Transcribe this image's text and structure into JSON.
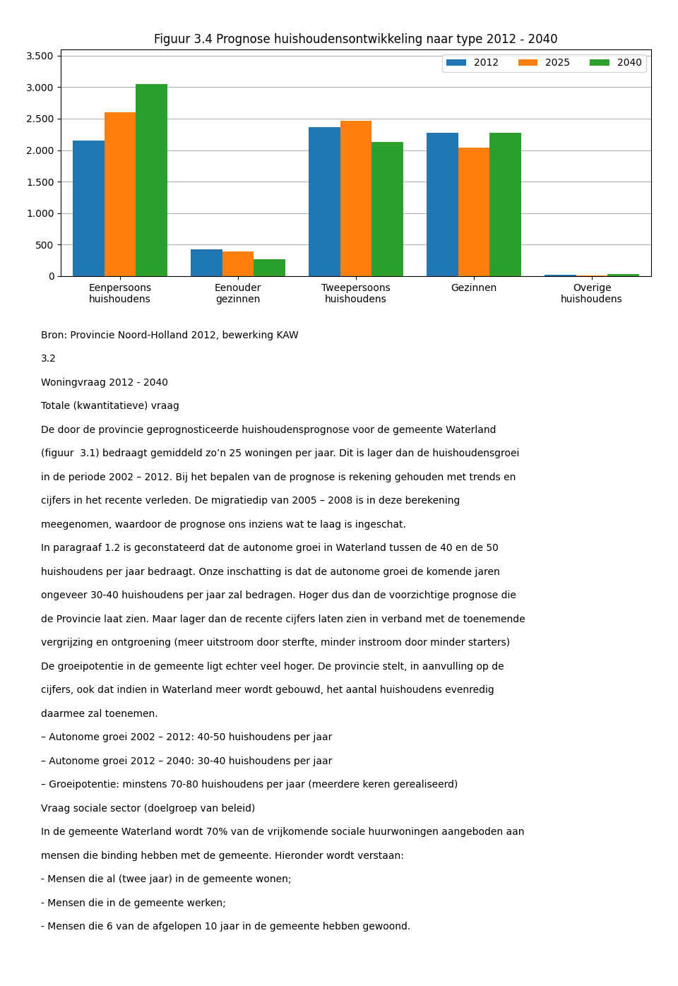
{
  "chart_data": {
    "type": "bar",
    "title": "Figuur 3.4 Prognose huishoudensontwikkeling naar type 2012 - 2040",
    "categories": [
      "Eenpersoons\nhuishoudens",
      "Eenouder\ngezinnen",
      "Tweepersoons\nhuishoudens",
      "Gezinnen",
      "Overige\nhuishoudens"
    ],
    "series": [
      {
        "name": "2012",
        "values": [
          2150,
          430,
          2370,
          2270,
          20
        ]
      },
      {
        "name": "2025",
        "values": [
          2600,
          395,
          2460,
          2040,
          15
        ]
      },
      {
        "name": "2040",
        "values": [
          3050,
          270,
          2130,
          2270,
          30
        ]
      }
    ],
    "ylim": [
      0,
      3600
    ],
    "yticks": [
      0,
      500,
      {
        "value": 1000,
        "label": "1.000"
      },
      {
        "value": 1500,
        "label": "1.500"
      },
      {
        "value": 2000,
        "label": "2.000"
      },
      {
        "value": 2500,
        "label": "2.500"
      },
      {
        "value": 3000,
        "label": "3.000"
      },
      {
        "value": 3500,
        "label": "3.500"
      }
    ],
    "grid": true,
    "legend": "upper right",
    "annotations": [
      "Bron: Provincie Noord-Holland 2012, bewerking KAW",
      "3.2",
      "Woningvraag 2012 - 2040",
      "Totale (kwantitatieve) vraag",
      "De door de provincie geprognosticeerde huishoudensprognose voor de gemeente Waterland",
      "(figuur  3.1) bedraagt gemiddeld zo’n 25 woningen per jaar. Dit is lager dan de huishoudensgroei",
      "in de periode 2002 – 2012. Bij het bepalen van de prognose is rekening gehouden met trends en",
      "cijfers in het recente verleden. De migratiedip van 2005 – 2008 is in deze berekening",
      "meegenomen, waardoor de prognose ons inziens wat te laag is ingeschat.",
      "In paragraaf 1.2 is geconstateerd dat de autonome groei in Waterland tussen de 40 en de 50",
      "huishoudens per jaar bedraagt. Onze inschatting is dat de autonome groei de komende jaren",
      "ongeveer 30-40 huishoudens per jaar zal bedragen. Hoger dus dan de voorzichtige prognose die",
      "de Provincie laat zien. Maar lager dan de recente cijfers laten zien in verband met de toenemende",
      "vergrijzing en ontgroening (meer uitstroom door sterfte, minder instroom door minder starters)",
      "De groeipotentie in de gemeente ligt echter veel hoger. De provincie stelt, in aanvulling op de",
      "cijfers, ook dat indien in Waterland meer wordt gebouwd, het aantal huishoudens evenredig",
      "daarmee zal toenemen.",
      "– Autonome groei 2002 – 2012: 40-50 huishoudens per jaar",
      "– Autonome groei 2012 – 2040: 30-40 huishoudens per jaar",
      "– Groeipotentie: minstens 70-80 huishoudens per jaar (meerdere keren gerealiseerd)",
      "Vraag sociale sector (doelgroep van beleid)",
      "In de gemeente Waterland wordt 70% van de vrijkomende sociale huurwoningen aangeboden aan",
      "mensen die binding hebben met de gemeente. Hieronder wordt verstaan:",
      "- Mensen die al (twee jaar) in de gemeente wonen;",
      "- Mensen die in de gemeente werken;",
      "- Mensen die 6 van de afgelopen 10 jaar in de gemeente hebben gewoond."
    ]
  }
}
